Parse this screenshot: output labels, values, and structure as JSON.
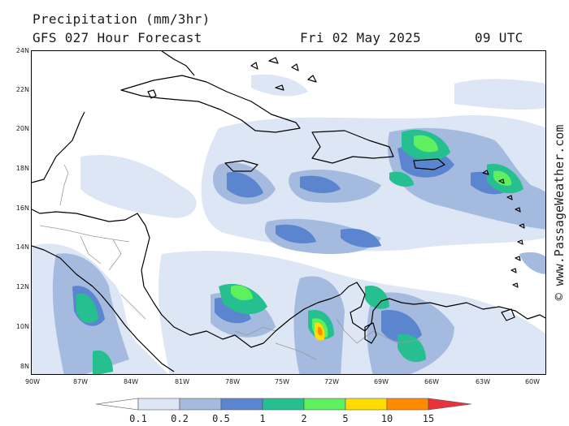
{
  "header": {
    "title": "Precipitation (mm/3hr)",
    "model": "GFS 027 Hour Forecast",
    "date": "Fri 02 May 2025",
    "time": "09 UTC"
  },
  "credit": "© www.PassageWeather.com",
  "axes": {
    "lat_labels": [
      "24N",
      "22N",
      "20N",
      "18N",
      "16N",
      "14N",
      "12N",
      "10N",
      "8N"
    ],
    "lon_labels": [
      "90W",
      "87W",
      "84W",
      "81W",
      "78W",
      "75W",
      "72W",
      "69W",
      "66W",
      "63W",
      "60W"
    ]
  },
  "legend": {
    "ticks": [
      "0.1",
      "0.2",
      "0.5",
      "1",
      "2",
      "5",
      "10",
      "15"
    ],
    "colors": [
      "#ffffff",
      "#dde6f4",
      "#a5badf",
      "#5b86cf",
      "#26bf8f",
      "#5ef05e",
      "#ffdd00",
      "#ff8a00",
      "#e8323c"
    ]
  },
  "map": {
    "water_color": "#ffffff",
    "coast_color": "#000000",
    "border_color": "#9a9a9a"
  }
}
